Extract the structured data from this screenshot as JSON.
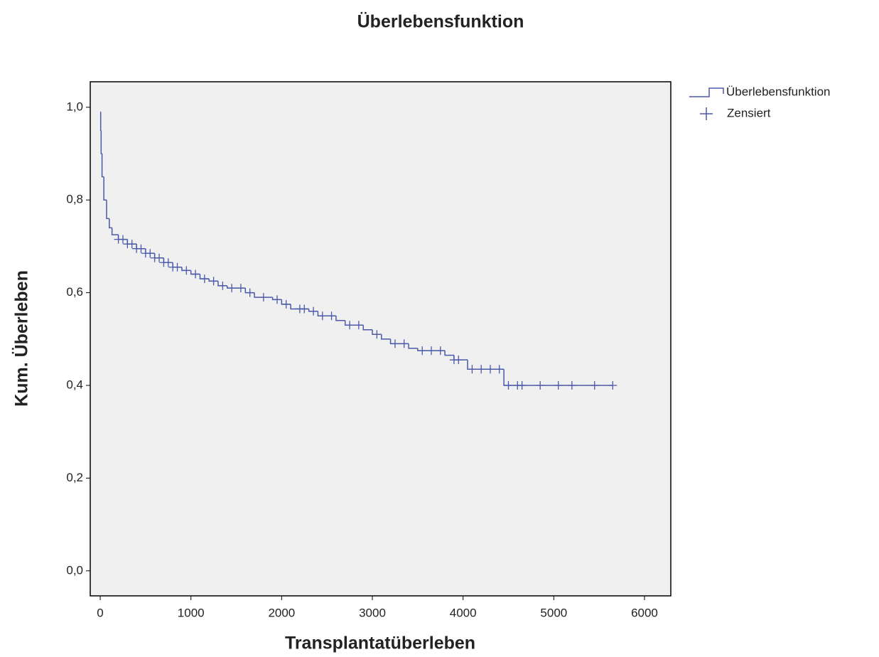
{
  "chart_data": {
    "type": "line",
    "title": "Überlebensfunktion",
    "x_label": "Transplantatüberleben",
    "y_label": "Kum. Überleben",
    "xlim": [
      -110,
      6290
    ],
    "ylim": [
      -0.054,
      1.055
    ],
    "xticks": [
      0,
      1000,
      2000,
      3000,
      4000,
      5000,
      6000
    ],
    "yticks": [
      {
        "value": 0,
        "label": "0,0"
      },
      {
        "value": 0.2,
        "label": "0,2"
      },
      {
        "value": 0.4,
        "label": "0,4"
      },
      {
        "value": 0.6,
        "label": "0,6"
      },
      {
        "value": 0.8,
        "label": "0,8"
      },
      {
        "value": 1,
        "label": "1,0"
      }
    ],
    "legend": "right",
    "series": [
      {
        "name": "Überlebensfunktion",
        "color": "#4a5aa8",
        "step": "post",
        "x": [
          0,
          5,
          10,
          20,
          40,
          70,
          100,
          130,
          200,
          300,
          400,
          500,
          600,
          700,
          800,
          900,
          1000,
          1100,
          1200,
          1300,
          1400,
          1600,
          1700,
          1900,
          2000,
          2100,
          2300,
          2400,
          2600,
          2700,
          2900,
          3000,
          3100,
          3200,
          3400,
          3500,
          3800,
          3900,
          4050,
          4450,
          5650
        ],
        "values": [
          0.99,
          0.95,
          0.9,
          0.85,
          0.8,
          0.76,
          0.74,
          0.725,
          0.715,
          0.705,
          0.695,
          0.685,
          0.675,
          0.665,
          0.655,
          0.648,
          0.64,
          0.63,
          0.625,
          0.615,
          0.61,
          0.6,
          0.59,
          0.585,
          0.575,
          0.565,
          0.56,
          0.55,
          0.54,
          0.53,
          0.52,
          0.51,
          0.5,
          0.49,
          0.48,
          0.475,
          0.465,
          0.455,
          0.435,
          0.4,
          0.4
        ]
      },
      {
        "name": "Zensiert",
        "color": "#4a5aa8",
        "marker": "+",
        "x": [
          200,
          250,
          300,
          350,
          400,
          450,
          500,
          550,
          600,
          650,
          700,
          750,
          800,
          850,
          950,
          1050,
          1150,
          1250,
          1350,
          1450,
          1550,
          1650,
          1800,
          1950,
          2050,
          2200,
          2250,
          2350,
          2450,
          2550,
          2750,
          2850,
          3050,
          3250,
          3350,
          3550,
          3650,
          3750,
          3900,
          3950,
          4100,
          4200,
          4300,
          4400,
          4500,
          4600,
          4650,
          4850,
          5050,
          5200,
          5450,
          5650
        ],
        "values": [
          0.715,
          0.715,
          0.705,
          0.705,
          0.695,
          0.695,
          0.685,
          0.685,
          0.675,
          0.675,
          0.665,
          0.665,
          0.655,
          0.655,
          0.648,
          0.64,
          0.63,
          0.625,
          0.615,
          0.61,
          0.61,
          0.6,
          0.59,
          0.585,
          0.575,
          0.565,
          0.565,
          0.56,
          0.55,
          0.55,
          0.53,
          0.53,
          0.51,
          0.49,
          0.49,
          0.475,
          0.475,
          0.475,
          0.455,
          0.455,
          0.435,
          0.435,
          0.435,
          0.435,
          0.4,
          0.4,
          0.4,
          0.4,
          0.4,
          0.4,
          0.4,
          0.4
        ]
      }
    ]
  }
}
